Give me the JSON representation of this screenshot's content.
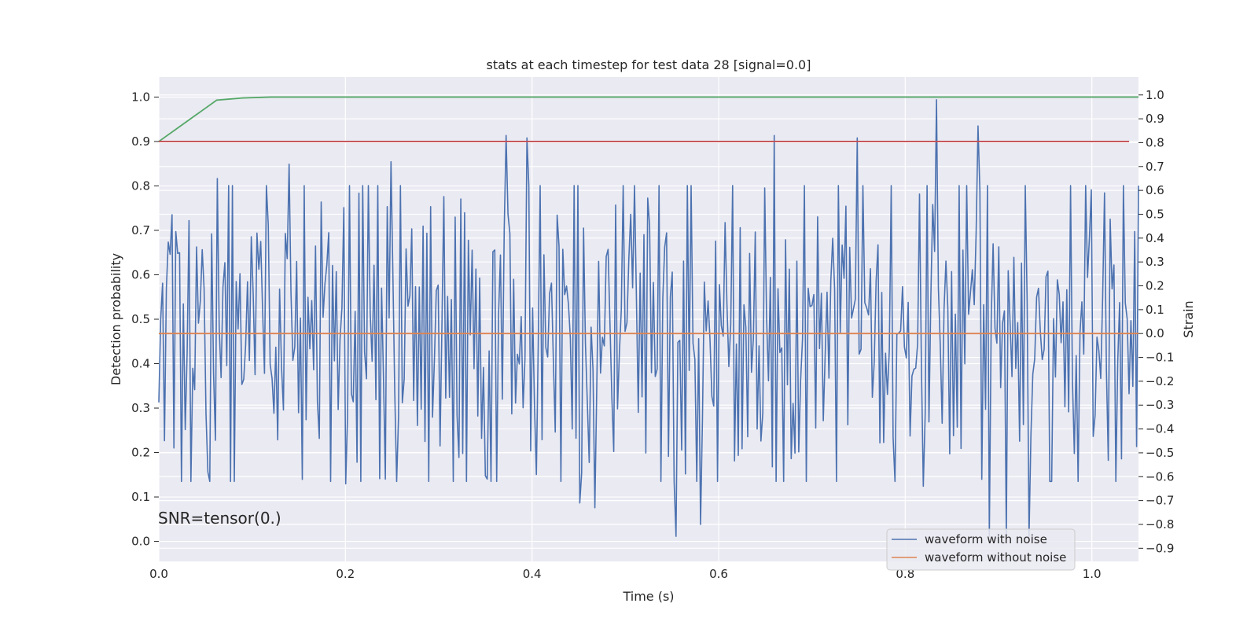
{
  "chart_data": {
    "type": "line",
    "title": "stats at each timestep for test data 28 [signal=0.0]",
    "xlabel": "Time (s)",
    "ylabel_left": "Detection probability",
    "ylabel_right": "Strain",
    "annotation": "SNR=tensor(0.)",
    "grid": true,
    "legend_placement": "lower-right",
    "xlim": [
      0.0,
      1.05
    ],
    "ylim_left": [
      -0.045,
      1.045
    ],
    "ylim_right": [
      -0.955,
      1.075
    ],
    "x_ticks": [
      "0.0",
      "0.2",
      "0.4",
      "0.6",
      "0.8",
      "1.0"
    ],
    "y_left_ticks": [
      "0.0",
      "0.1",
      "0.2",
      "0.3",
      "0.4",
      "0.5",
      "0.6",
      "0.7",
      "0.8",
      "0.9",
      "1.0"
    ],
    "y_right_ticks": [
      "−0.9",
      "−0.8",
      "−0.7",
      "−0.6",
      "−0.5",
      "−0.4",
      "−0.3",
      "−0.2",
      "−0.1",
      "0.0",
      "0.1",
      "0.2",
      "0.3",
      "0.4",
      "0.5",
      "0.6",
      "0.7",
      "0.8",
      "0.9",
      "1.0"
    ],
    "series": [
      {
        "name": "waveform with noise",
        "axis": "right",
        "color": "#4c72b0",
        "x_range": [
          0.0,
          1.05
        ],
        "sample_count": 520,
        "approx_range": [
          -0.85,
          0.98
        ],
        "peaks": [
          {
            "x": 0.062,
            "y": 0.65
          },
          {
            "x": 0.14,
            "y": 0.71
          },
          {
            "x": 0.248,
            "y": 0.72
          },
          {
            "x": 0.373,
            "y": 0.83
          },
          {
            "x": 0.395,
            "y": 0.82
          },
          {
            "x": 0.66,
            "y": 0.83
          },
          {
            "x": 0.748,
            "y": 0.82
          },
          {
            "x": 0.833,
            "y": 0.98
          },
          {
            "x": 0.878,
            "y": 0.87
          }
        ],
        "troughs": [
          {
            "x": 0.052,
            "y": -0.58
          },
          {
            "x": 0.201,
            "y": -0.63
          },
          {
            "x": 0.353,
            "y": -0.61
          },
          {
            "x": 0.452,
            "y": -0.71
          },
          {
            "x": 0.468,
            "y": -0.73
          },
          {
            "x": 0.555,
            "y": -0.85
          },
          {
            "x": 0.58,
            "y": -0.8
          },
          {
            "x": 0.82,
            "y": -0.64
          },
          {
            "x": 0.89,
            "y": -0.85
          },
          {
            "x": 0.908,
            "y": -0.85
          },
          {
            "x": 0.932,
            "y": -0.85
          }
        ]
      },
      {
        "name": "waveform without noise",
        "axis": "right",
        "color": "#dd8452",
        "x": [
          0.0,
          1.05
        ],
        "y": [
          0.0,
          0.0
        ]
      },
      {
        "name": "",
        "axis": "left",
        "color": "#55a868",
        "x": [
          0.0,
          0.02,
          0.04,
          0.062,
          0.09,
          0.12,
          1.05
        ],
        "y": [
          0.9,
          0.93,
          0.96,
          0.993,
          0.998,
          1.0,
          1.0
        ]
      },
      {
        "name": "",
        "axis": "left",
        "color": "#c44e52",
        "x": [
          0.0,
          1.04
        ],
        "y": [
          0.9,
          0.9
        ]
      }
    ]
  }
}
